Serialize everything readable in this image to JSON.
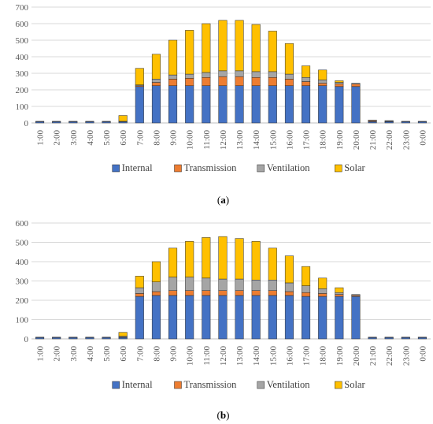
{
  "colors": {
    "Internal": "#4472c4",
    "Transmission": "#ed7d31",
    "Ventilation": "#a5a5a5",
    "Solar": "#ffc000"
  },
  "chart_data": [
    {
      "type": "bar",
      "stacked": true,
      "caption_label": "a",
      "categories": [
        "1:00",
        "2:00",
        "3:00",
        "4:00",
        "5:00",
        "6:00",
        "7:00",
        "8:00",
        "9:00",
        "10:00",
        "11:00",
        "12:00",
        "13:00",
        "14:00",
        "15:00",
        "16:00",
        "17:00",
        "18:00",
        "19:00",
        "20:00",
        "21:00",
        "22:00",
        "23:00",
        "0:00"
      ],
      "ylim": [
        0,
        700
      ],
      "yticks": [
        "0",
        "100",
        "200",
        "300",
        "400",
        "500",
        "600",
        "700"
      ],
      "legend_position": "bottom",
      "series": [
        {
          "name": "Internal",
          "values": [
            8,
            8,
            8,
            8,
            8,
            8,
            220,
            225,
            225,
            225,
            225,
            225,
            225,
            225,
            225,
            225,
            225,
            225,
            220,
            220,
            8,
            8,
            8,
            8
          ]
        },
        {
          "name": "Transmission",
          "values": [
            2,
            2,
            2,
            2,
            2,
            2,
            5,
            20,
            40,
            45,
            50,
            55,
            55,
            50,
            50,
            40,
            25,
            15,
            15,
            15,
            5,
            3,
            2,
            2
          ]
        },
        {
          "name": "Ventilation",
          "values": [
            0,
            0,
            0,
            0,
            0,
            0,
            5,
            20,
            25,
            25,
            30,
            35,
            35,
            35,
            35,
            30,
            25,
            20,
            10,
            5,
            5,
            3,
            0,
            0
          ]
        },
        {
          "name": "Solar",
          "values": [
            0,
            0,
            0,
            0,
            0,
            35,
            100,
            150,
            210,
            265,
            295,
            305,
            305,
            285,
            245,
            185,
            70,
            60,
            10,
            0,
            0,
            0,
            0,
            0
          ]
        }
      ]
    },
    {
      "type": "bar",
      "stacked": true,
      "caption_label": "b",
      "categories": [
        "1:00",
        "2:00",
        "3:00",
        "4:00",
        "5:00",
        "6:00",
        "7:00",
        "8:00",
        "9:00",
        "10:00",
        "11:00",
        "12:00",
        "13:00",
        "14:00",
        "15:00",
        "16:00",
        "17:00",
        "18:00",
        "19:00",
        "20:00",
        "21:00",
        "22:00",
        "23:00",
        "0:00"
      ],
      "ylim": [
        0,
        600
      ],
      "yticks": [
        "0",
        "100",
        "200",
        "300",
        "400",
        "500",
        "600"
      ],
      "legend_position": "bottom",
      "series": [
        {
          "name": "Internal",
          "values": [
            8,
            8,
            8,
            8,
            8,
            8,
            220,
            225,
            225,
            225,
            225,
            225,
            225,
            225,
            225,
            225,
            220,
            220,
            220,
            220,
            8,
            8,
            8,
            8
          ]
        },
        {
          "name": "Transmission",
          "values": [
            1,
            1,
            1,
            1,
            1,
            1,
            15,
            20,
            25,
            25,
            25,
            25,
            25,
            25,
            25,
            20,
            20,
            15,
            10,
            5,
            1,
            1,
            1,
            1
          ]
        },
        {
          "name": "Ventilation",
          "values": [
            0,
            0,
            0,
            0,
            0,
            5,
            30,
            50,
            70,
            70,
            65,
            60,
            60,
            55,
            55,
            45,
            35,
            25,
            10,
            5,
            0,
            0,
            0,
            0
          ]
        },
        {
          "name": "Solar",
          "values": [
            0,
            0,
            0,
            0,
            0,
            20,
            60,
            105,
            150,
            185,
            210,
            220,
            210,
            200,
            165,
            140,
            100,
            55,
            25,
            0,
            0,
            0,
            0,
            0
          ]
        }
      ]
    }
  ]
}
